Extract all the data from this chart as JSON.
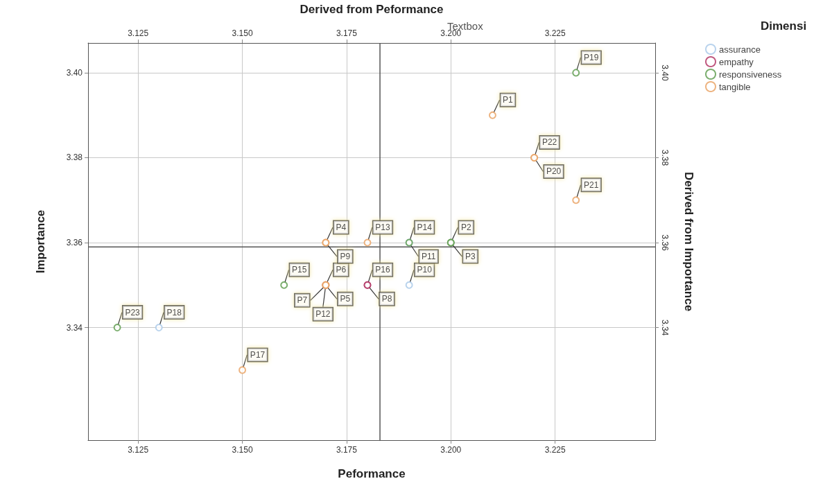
{
  "chart_data": {
    "type": "scatter",
    "xlabel": "Peformance",
    "ylabel": "Importance",
    "x2label": "Derived from Peformance",
    "y2label": "Derived from Importance",
    "legend_title": "Dimensi",
    "annotations": [
      "Textbox"
    ],
    "xlim": [
      3.113,
      3.249
    ],
    "ylim": [
      3.3135,
      3.407
    ],
    "xticks": [
      3.125,
      {
        "value": 3.15,
        "label": "3.150"
      },
      3.175,
      {
        "value": 3.2,
        "label": "3.200"
      },
      3.225
    ],
    "x2lim": [
      3.113,
      3.249
    ],
    "x2ticks": [
      3.125,
      {
        "value": 3.15,
        "label": "3.150"
      },
      3.175,
      {
        "value": 3.2,
        "label": "3.200"
      },
      3.225
    ],
    "yticks": [
      3.34,
      3.36,
      3.38,
      {
        "value": 3.4,
        "label": "3.40"
      }
    ],
    "y2lim": [
      3.3135,
      3.407
    ],
    "y2ticks": [
      3.34,
      3.36,
      3.38,
      {
        "value": 3.4,
        "label": "3.40"
      }
    ],
    "ref_lines": [
      {
        "axis": "x",
        "value": 3.183,
        "label": null,
        "color": "#555555"
      },
      {
        "axis": "y",
        "value": 3.359,
        "label": null,
        "color": "#555555"
      }
    ],
    "grid": true,
    "legend": "top right",
    "marker": "circle",
    "series": [
      {
        "name": "assurance",
        "color": "#a8c8e8",
        "x": [
          3.19,
          3.13,
          3.19
        ],
        "values": [
          3.35,
          3.34,
          3.36
        ],
        "value_labels": [
          "P10",
          "P18",
          "P14"
        ]
      },
      {
        "name": "empathy",
        "color": "#b03060",
        "x": [
          3.17,
          3.18,
          3.18
        ],
        "values": [
          3.35,
          3.35,
          3.35
        ],
        "value_labels": [
          "P6",
          "P16",
          "P8"
        ]
      },
      {
        "name": "responsiveness",
        "color": "#5a9a4a",
        "x": [
          3.23,
          3.2,
          3.2,
          3.19,
          3.16,
          3.12
        ],
        "values": [
          3.4,
          3.36,
          3.36,
          3.36,
          3.35,
          3.34
        ],
        "value_labels": [
          "P19",
          "P2",
          "P3",
          "P11",
          "P15",
          "P23"
        ]
      },
      {
        "name": "tangible",
        "color": "#e8a060",
        "x": [
          3.21,
          3.17,
          3.17,
          3.18,
          3.15,
          3.23,
          3.22,
          3.22,
          3.17,
          3.17,
          3.17
        ],
        "values": [
          3.39,
          3.36,
          3.36,
          3.36,
          3.33,
          3.37,
          3.38,
          3.38,
          3.35,
          3.35,
          3.35
        ],
        "value_labels": [
          "P1",
          "P4",
          "P9",
          "P13",
          "P17",
          "P21",
          "P22",
          "P20",
          "P5",
          "P7",
          "P12"
        ]
      }
    ]
  }
}
